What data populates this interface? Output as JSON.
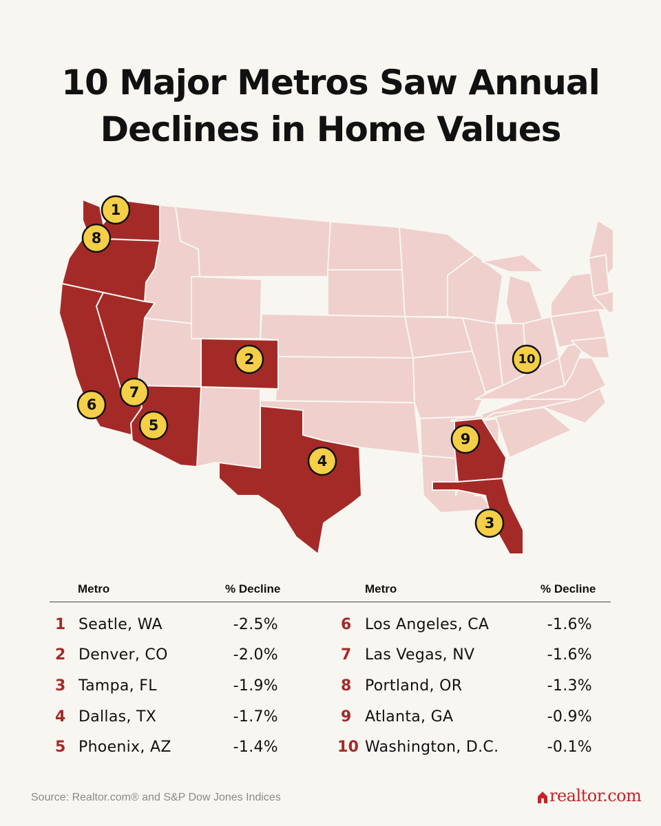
{
  "title": {
    "line1": "10 Major Metros Saw Annual",
    "line2": "Declines in Home Values"
  },
  "map": {
    "highlight_color": "#a42a28",
    "base_color": "#efd0cd",
    "badge_color": "#f4cf47",
    "highlighted_states": [
      "WA",
      "OR",
      "CA",
      "NV",
      "AZ",
      "CO",
      "TX",
      "GA",
      "FL"
    ],
    "markers": [
      {
        "rank": "1",
        "metro": "Seatle, WA"
      },
      {
        "rank": "2",
        "metro": "Denver, CO"
      },
      {
        "rank": "3",
        "metro": "Tampa, FL"
      },
      {
        "rank": "4",
        "metro": "Dallas, TX"
      },
      {
        "rank": "5",
        "metro": "Phoenix, AZ"
      },
      {
        "rank": "6",
        "metro": "Los Angeles, CA"
      },
      {
        "rank": "7",
        "metro": "Las Vegas, NV"
      },
      {
        "rank": "8",
        "metro": "Portland, OR"
      },
      {
        "rank": "9",
        "metro": "Atlanta, GA"
      },
      {
        "rank": "10",
        "metro": "Washington, D.C."
      }
    ]
  },
  "table": {
    "headers": {
      "metro": "Metro",
      "decline": "% Decline"
    },
    "rows": [
      {
        "rank": "1",
        "metro": "Seatle, WA",
        "decline": "-2.5%"
      },
      {
        "rank": "2",
        "metro": "Denver, CO",
        "decline": "-2.0%"
      },
      {
        "rank": "3",
        "metro": "Tampa, FL",
        "decline": "-1.9%"
      },
      {
        "rank": "4",
        "metro": "Dallas, TX",
        "decline": "-1.7%"
      },
      {
        "rank": "5",
        "metro": "Phoenix, AZ",
        "decline": "-1.4%"
      },
      {
        "rank": "6",
        "metro": "Los Angeles, CA",
        "decline": "-1.6%"
      },
      {
        "rank": "7",
        "metro": "Las Vegas, NV",
        "decline": "-1.6%"
      },
      {
        "rank": "8",
        "metro": "Portland, OR",
        "decline": "-1.3%"
      },
      {
        "rank": "9",
        "metro": "Atlanta, GA",
        "decline": "-0.9%"
      },
      {
        "rank": "10",
        "metro": "Washington, D.C.",
        "decline": "-0.1%"
      }
    ]
  },
  "footer": {
    "source": "Source: Realtor.com® and S&P Dow Jones Indices",
    "logo_text": "realtor.com",
    "logo_icon": "house-icon"
  }
}
